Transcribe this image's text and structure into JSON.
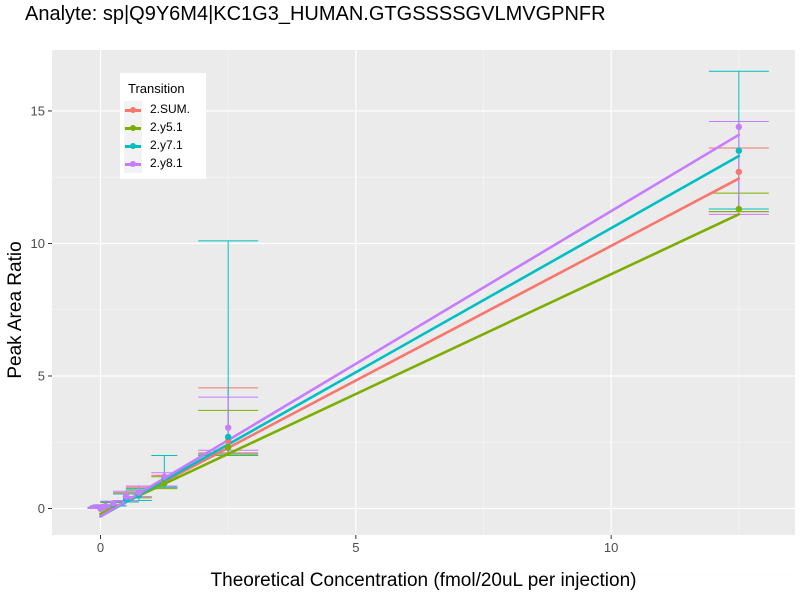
{
  "chart_data": {
    "type": "line",
    "title": "Analyte: sp|Q9Y6M4|KC1G3_HUMAN.GTGSSSSGVLMVGPNFR",
    "xlabel": "Theoretical Concentration (fmol/20uL per injection)",
    "ylabel": "Peak Area Ratio",
    "xlim": [
      -0.95,
      13.6
    ],
    "ylim": [
      -1.0,
      17.3
    ],
    "x_ticks": [
      0,
      5,
      10
    ],
    "y_ticks": [
      0,
      5,
      10,
      15
    ],
    "grid": true,
    "legend": {
      "title": "Transition",
      "placement": "top-left"
    },
    "x": [
      0,
      0.05,
      0.1,
      0.25,
      0.5,
      0.75,
      1.25,
      2.5,
      12.5
    ],
    "series": [
      {
        "name": "2.SUM.",
        "color": "#F8766D",
        "values": [
          0.0,
          0.05,
          0.08,
          0.18,
          0.45,
          0.6,
          1.0,
          2.55,
          12.7
        ],
        "err_low": [
          0.0,
          0.03,
          0.05,
          0.12,
          0.3,
          0.45,
          0.8,
          2.1,
          11.2
        ],
        "err_high": [
          0.05,
          0.1,
          0.12,
          0.25,
          0.6,
          0.8,
          1.25,
          4.55,
          13.6
        ],
        "fit": [
          -0.25,
          12.45
        ]
      },
      {
        "name": "2.y5.1",
        "color": "#7CAE00",
        "values": [
          0.0,
          0.04,
          0.07,
          0.15,
          0.4,
          0.55,
          0.95,
          2.3,
          11.3
        ],
        "err_low": [
          0.0,
          0.02,
          0.04,
          0.1,
          0.25,
          0.4,
          0.75,
          2.0,
          11.2
        ],
        "err_high": [
          0.04,
          0.08,
          0.1,
          0.22,
          0.55,
          0.7,
          1.2,
          3.7,
          11.9
        ],
        "fit": [
          -0.2,
          11.1
        ]
      },
      {
        "name": "2.y7.1",
        "color": "#00BFC4",
        "values": [
          0.0,
          0.05,
          0.08,
          0.17,
          0.35,
          0.5,
          1.15,
          2.7,
          13.5
        ],
        "err_low": [
          0.0,
          0.03,
          0.05,
          0.1,
          0.25,
          0.3,
          0.8,
          2.05,
          11.3
        ],
        "err_high": [
          0.05,
          0.1,
          0.12,
          0.25,
          0.55,
          0.75,
          2.0,
          10.1,
          16.5
        ],
        "fit": [
          -0.3,
          13.3
        ]
      },
      {
        "name": "2.y8.1",
        "color": "#C77CFF",
        "values": [
          0.0,
          0.05,
          0.09,
          0.2,
          0.45,
          0.6,
          1.2,
          3.05,
          14.4
        ],
        "err_low": [
          0.0,
          0.03,
          0.05,
          0.12,
          0.3,
          0.45,
          0.85,
          2.2,
          11.1
        ],
        "err_high": [
          0.05,
          0.1,
          0.14,
          0.28,
          0.65,
          0.85,
          1.35,
          4.2,
          14.6
        ],
        "fit": [
          -0.3,
          14.1
        ]
      }
    ]
  }
}
